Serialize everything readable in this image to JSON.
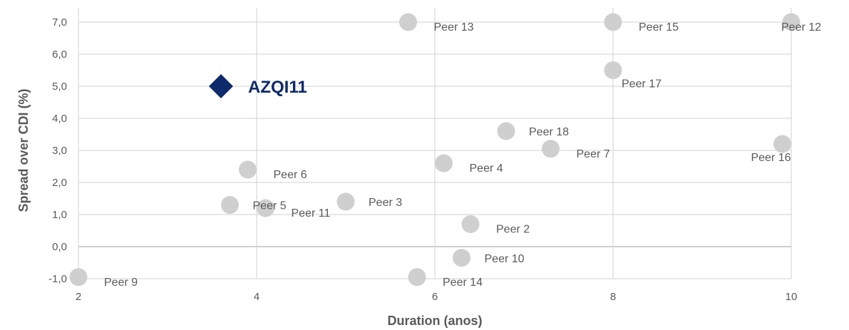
{
  "chart_data": {
    "type": "scatter",
    "title": "",
    "xlabel": "Duration (anos)",
    "ylabel": "Spread over CDI (%)",
    "xlim": [
      2,
      10
    ],
    "ylim": [
      -1,
      7
    ],
    "x_ticks": [
      2,
      4,
      6,
      8,
      10
    ],
    "x_tick_labels": [
      "2",
      "4",
      "6",
      "8",
      "10"
    ],
    "y_ticks": [
      -1,
      0,
      1,
      2,
      3,
      4,
      5,
      6,
      7
    ],
    "y_tick_labels": [
      "-1,0",
      "0,0",
      "1,0",
      "2,0",
      "3,0",
      "4,0",
      "5,0",
      "6,0",
      "7,0"
    ],
    "grid": true,
    "legend": "none",
    "colors": {
      "peer": "#cfcfcf",
      "highlight": "#0d2a6b",
      "grid": "#d9d9d9",
      "text": "#595959"
    },
    "highlight": {
      "name": "AZQI11",
      "x": 3.6,
      "y": 5.0,
      "marker": "diamond"
    },
    "points": [
      {
        "name": "Peer 9",
        "x": 2.0,
        "y": -0.95,
        "label_pos": "right-below"
      },
      {
        "name": "Peer 5",
        "x": 3.7,
        "y": 1.3,
        "label_pos": "right"
      },
      {
        "name": "Peer 6",
        "x": 3.9,
        "y": 2.4,
        "label_pos": "right-below"
      },
      {
        "name": "Peer 11",
        "x": 4.1,
        "y": 1.2,
        "label_pos": "right-below"
      },
      {
        "name": "Peer 3",
        "x": 5.0,
        "y": 1.4,
        "label_pos": "right"
      },
      {
        "name": "Peer 13",
        "x": 5.7,
        "y": 7.0,
        "label_pos": "right-below"
      },
      {
        "name": "Peer 14",
        "x": 5.8,
        "y": -0.95,
        "label_pos": "right-below"
      },
      {
        "name": "Peer 4",
        "x": 6.1,
        "y": 2.6,
        "label_pos": "right-below"
      },
      {
        "name": "Peer 10",
        "x": 6.3,
        "y": -0.35,
        "label_pos": "right"
      },
      {
        "name": "Peer 2",
        "x": 6.4,
        "y": 0.7,
        "label_pos": "right-below"
      },
      {
        "name": "Peer 18",
        "x": 6.8,
        "y": 3.6,
        "label_pos": "right"
      },
      {
        "name": "Peer 7",
        "x": 7.3,
        "y": 3.05,
        "label_pos": "right-below"
      },
      {
        "name": "Peer 15",
        "x": 8.0,
        "y": 7.0,
        "label_pos": "right-below"
      },
      {
        "name": "Peer 17",
        "x": 8.0,
        "y": 5.5,
        "label_pos": "right-below-near"
      },
      {
        "name": "Peer 16",
        "x": 9.9,
        "y": 3.2,
        "label_pos": "below-left"
      },
      {
        "name": "Peer 12",
        "x": 10.0,
        "y": 7.0,
        "label_pos": "over-right"
      }
    ]
  }
}
